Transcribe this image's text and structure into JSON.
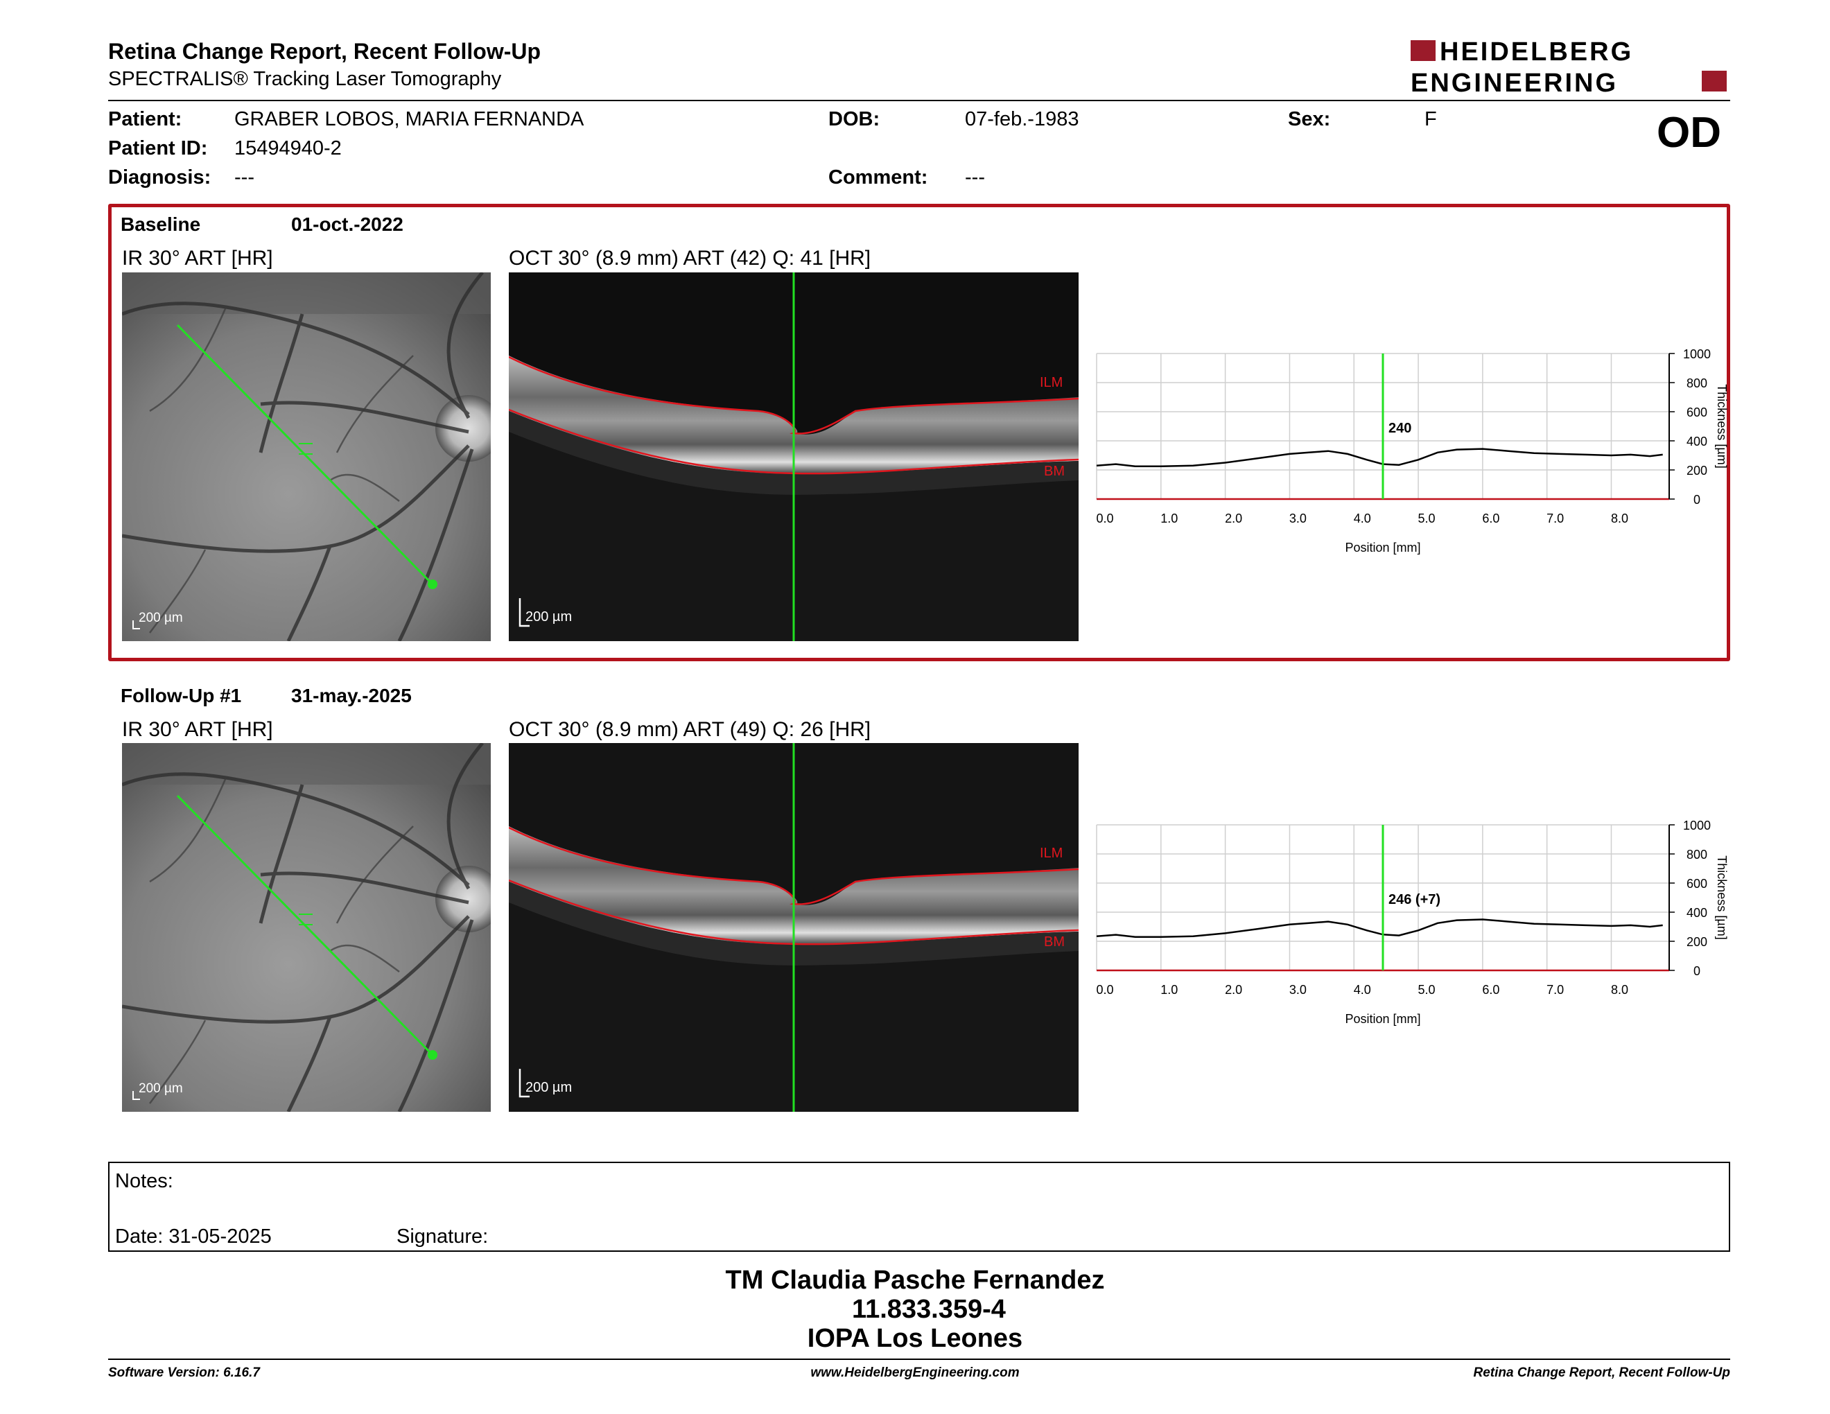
{
  "header": {
    "title": "Retina Change Report, Recent Follow-Up",
    "subtitle": "SPECTRALIS® Tracking Laser Tomography",
    "brand_line1": "HEIDELBERG",
    "brand_line2": "ENGINEERING",
    "eye": "OD"
  },
  "patient": {
    "name_label": "Patient:",
    "name": "GRABER LOBOS, MARIA FERNANDA",
    "id_label": "Patient ID:",
    "id": "15494940-2",
    "diagnosis_label": "Diagnosis:",
    "diagnosis": "---",
    "dob_label": "DOB:",
    "dob": "07-feb.-1983",
    "comment_label": "Comment:",
    "comment": "---",
    "sex_label": "Sex:",
    "sex": "F"
  },
  "baseline": {
    "label": "Baseline",
    "date": "01-oct.-2022",
    "ir_title": "IR 30° ART [HR]",
    "oct_title": "OCT 30° (8.9 mm) ART (42) Q: 41 [HR]",
    "ir_scale": "200 µm",
    "oct_scale": "200 µm",
    "ilm": "ILM",
    "bm": "BM",
    "cursor_value": "240"
  },
  "followup": {
    "label": "Follow-Up #1",
    "date": "31-may.-2025",
    "ir_title": "IR 30° ART [HR]",
    "oct_title": "OCT 30° (8.9 mm) ART (49) Q: 26 [HR]",
    "ir_scale": "200 µm",
    "oct_scale": "200 µm",
    "ilm": "ILM",
    "bm": "BM",
    "cursor_value": "246 (+7)"
  },
  "chart_data": [
    {
      "type": "line",
      "xlabel": "Position [mm]",
      "ylabel": "Thickness [µm]",
      "xlim": [
        0,
        8.9
      ],
      "ylim": [
        0,
        1000
      ],
      "xticks": [
        "0.0",
        "1.0",
        "2.0",
        "3.0",
        "4.0",
        "5.0",
        "6.0",
        "7.0",
        "8.0"
      ],
      "yticks": [
        "0",
        "200",
        "400",
        "600",
        "800",
        "1000"
      ],
      "cursor_x": 4.45,
      "cursor_label": "240",
      "grid": true,
      "series": [
        {
          "x": [
            0,
            0.3,
            0.6,
            1.0,
            1.5,
            2.0,
            2.5,
            3.0,
            3.3,
            3.6,
            3.9,
            4.2,
            4.45,
            4.7,
            5.0,
            5.3,
            5.6,
            6.0,
            6.4,
            6.8,
            7.2,
            7.6,
            8.0,
            8.3,
            8.6,
            8.8
          ],
          "y": [
            230,
            240,
            225,
            225,
            230,
            250,
            280,
            310,
            320,
            330,
            310,
            270,
            240,
            235,
            270,
            320,
            340,
            345,
            330,
            315,
            310,
            305,
            300,
            305,
            295,
            305
          ],
          "color": "#000000"
        }
      ]
    },
    {
      "type": "line",
      "xlabel": "Position [mm]",
      "ylabel": "Thickness [µm]",
      "xlim": [
        0,
        8.9
      ],
      "ylim": [
        0,
        1000
      ],
      "xticks": [
        "0.0",
        "1.0",
        "2.0",
        "3.0",
        "4.0",
        "5.0",
        "6.0",
        "7.0",
        "8.0"
      ],
      "yticks": [
        "0",
        "200",
        "400",
        "600",
        "800",
        "1000"
      ],
      "cursor_x": 4.45,
      "cursor_label": "246 (+7)",
      "grid": true,
      "series": [
        {
          "x": [
            0,
            0.3,
            0.6,
            1.0,
            1.5,
            2.0,
            2.5,
            3.0,
            3.3,
            3.6,
            3.9,
            4.2,
            4.45,
            4.7,
            5.0,
            5.3,
            5.6,
            6.0,
            6.4,
            6.8,
            7.2,
            7.6,
            8.0,
            8.3,
            8.6,
            8.8
          ],
          "y": [
            235,
            245,
            230,
            230,
            235,
            255,
            285,
            315,
            325,
            335,
            315,
            275,
            246,
            240,
            275,
            325,
            345,
            350,
            335,
            320,
            315,
            310,
            305,
            310,
            300,
            310
          ],
          "color": "#000000"
        }
      ]
    }
  ],
  "notes": {
    "notes_label": "Notes:",
    "date_label": "Date: 31-05-2025",
    "signature_label": "Signature:"
  },
  "signature_block": {
    "line1": "TM Claudia Pasche Fernandez",
    "line2": "11.833.359-4",
    "line3": "IOPA Los Leones"
  },
  "footer": {
    "left": "Software Version: 6.16.7",
    "center": "www.HeidelbergEngineering.com",
    "right": "Retina Change Report, Recent Follow-Up"
  },
  "colors": {
    "brand_red": "#9b1b2a",
    "frame_red": "#b3121c",
    "scan_green": "#22e022",
    "layer_red": "#e0161e"
  }
}
